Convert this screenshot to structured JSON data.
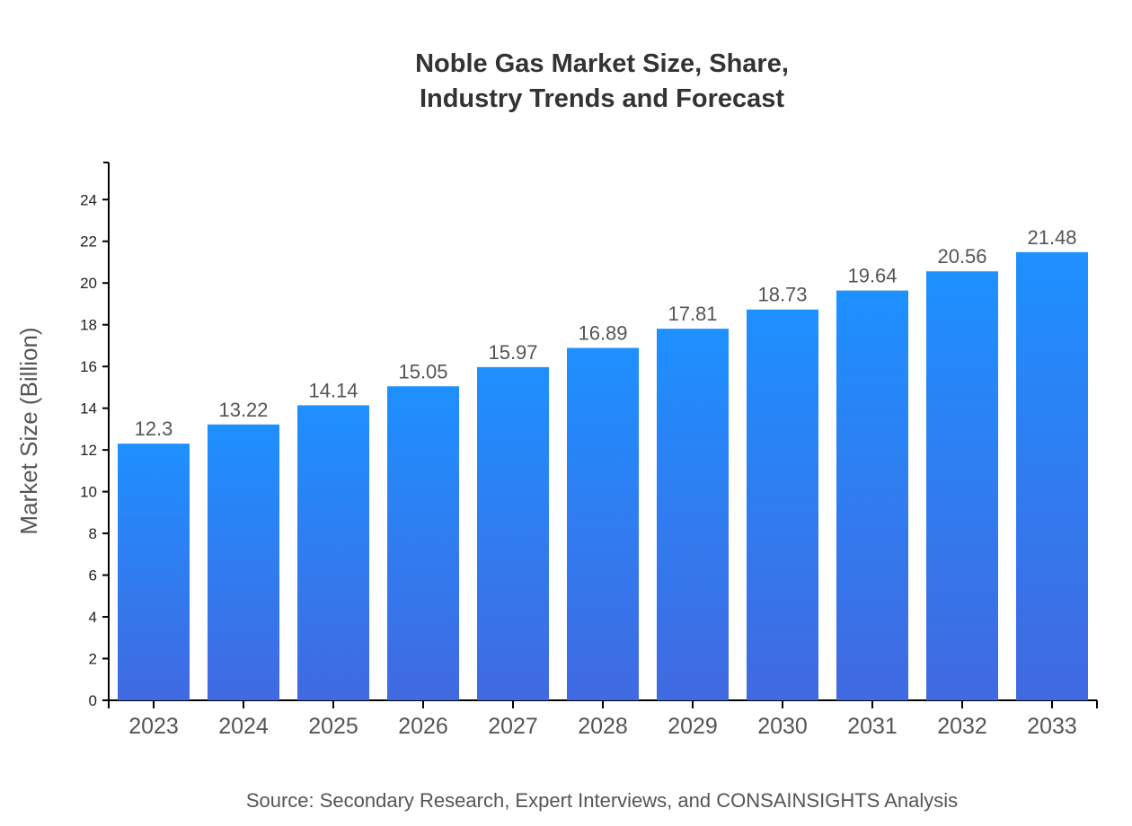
{
  "chart_data": {
    "type": "bar",
    "title_lines": [
      "Noble Gas Market Size, Share,",
      "Industry Trends and Forecast"
    ],
    "xlabel": "",
    "ylabel": "Market Size (Billion)",
    "categories": [
      "2023",
      "2024",
      "2025",
      "2026",
      "2027",
      "2028",
      "2029",
      "2030",
      "2031",
      "2032",
      "2033"
    ],
    "values": [
      12.3,
      13.22,
      14.14,
      15.05,
      15.97,
      16.89,
      17.81,
      18.73,
      19.64,
      20.56,
      21.48
    ],
    "data_labels": [
      "12.3",
      "13.22",
      "14.14",
      "15.05",
      "15.97",
      "16.89",
      "17.81",
      "18.73",
      "19.64",
      "20.56",
      "21.48"
    ],
    "ylim": [
      0,
      25.776
    ],
    "yticks": [
      0,
      2,
      4,
      6,
      8,
      10,
      12,
      14,
      16,
      18,
      20,
      22,
      24
    ],
    "grid": false,
    "legend": "none",
    "colors": {
      "bar_top": "#1e90ff",
      "bar_bottom": "#4169e1"
    },
    "source": "Source: Secondary Research, Expert Interviews, and CONSAINSIGHTS Analysis"
  }
}
